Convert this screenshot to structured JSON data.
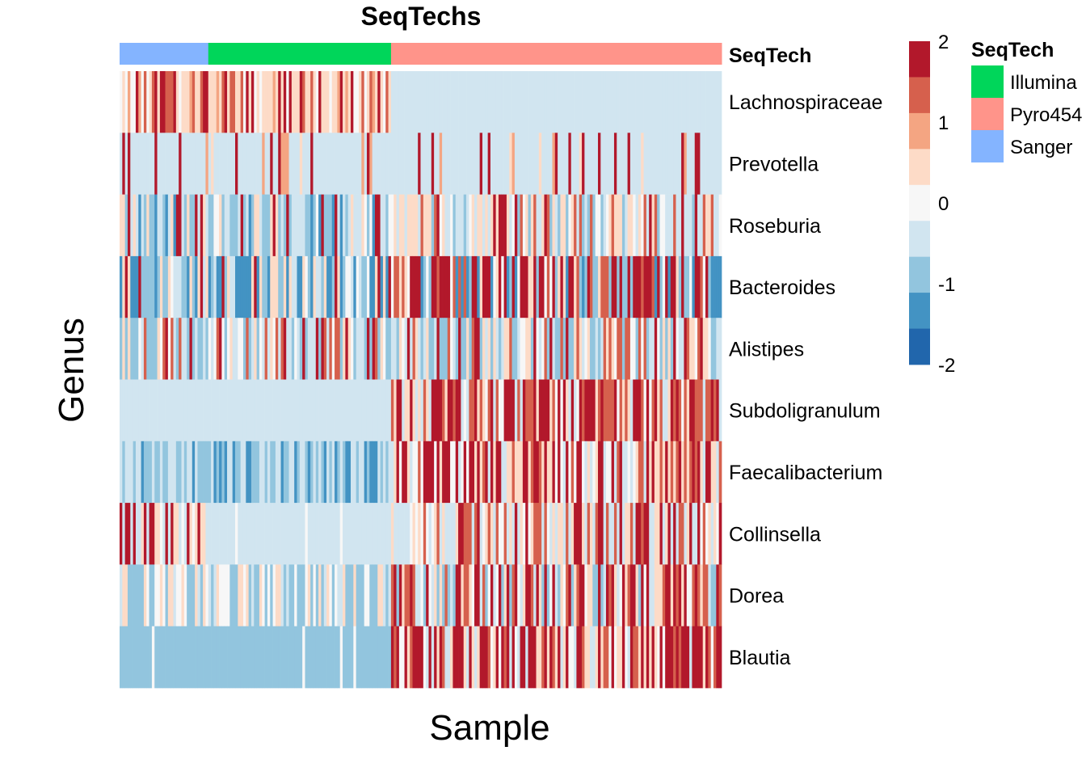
{
  "chart_data": {
    "type": "heatmap",
    "title": "SeqTechs",
    "xlabel": "Sample",
    "ylabel": "Genus",
    "annotation_label": "SeqTech",
    "rows": [
      "Lachnospiraceae",
      "Prevotella",
      "Roseburia",
      "Bacteroides",
      "Alistipes",
      "Subdoligranulum",
      "Faecalibacterium",
      "Collinsella",
      "Dorea",
      "Blautia"
    ],
    "sample_groups": [
      {
        "name": "Sanger",
        "count": 33,
        "color": "#84b4ff"
      },
      {
        "name": "Illumina",
        "count": 68,
        "color": "#00d65a"
      },
      {
        "name": "Pyro454",
        "count": 123,
        "color": "#ff948a"
      }
    ],
    "colorscale": {
      "min": -2,
      "max": 2,
      "ticks": [
        "2",
        "1",
        "0",
        "-1",
        "-2"
      ],
      "colors": [
        "#2166ac",
        "#4393c3",
        "#92c5de",
        "#d1e5f0",
        "#f7f7f7",
        "#fddbc7",
        "#f4a582",
        "#d6604d",
        "#b2182b"
      ]
    },
    "cell_values": "approximate per-sample z-scores, generated by row pattern",
    "legend": {
      "title": "SeqTech",
      "items": [
        {
          "label": "Illumina",
          "color": "#00d65a"
        },
        {
          "label": "Pyro454",
          "color": "#ff948a"
        },
        {
          "label": "Sanger",
          "color": "#84b4ff"
        }
      ]
    }
  }
}
